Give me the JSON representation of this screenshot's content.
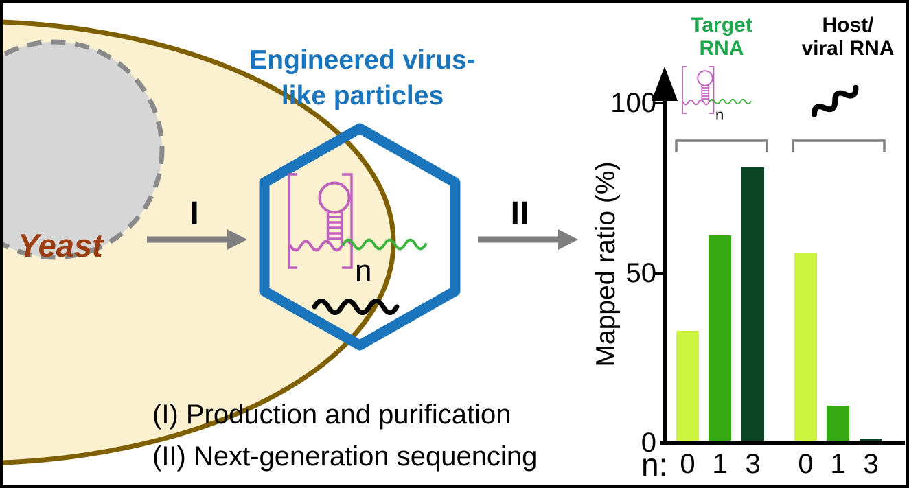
{
  "palette": {
    "vlp_blue": "#1B75BC",
    "yeast_fill": "#FBF0D0",
    "yeast_border": "#7F6000",
    "nucleus_gray": "#D6D6D6",
    "yeast_label_color": "#9A3B10",
    "rna_magenta": "#BE62BE",
    "rna_green": "#3CB53C",
    "target_label_green": "#1FA84B",
    "arrow_gray": "#7F7F7F"
  },
  "yeast": {
    "label": "Yeast"
  },
  "vlp": {
    "title_lines": [
      "Engineered virus-",
      "like particles"
    ],
    "repeat_subscript": "n"
  },
  "steps": {
    "arrow1_label": "I",
    "arrow2_label": "II",
    "note1": "(I) Production and purification",
    "note2": "(II) Next-generation sequencing"
  },
  "chart_data": {
    "type": "bar",
    "title": "",
    "ylabel": "Mapped ratio (%)",
    "ylim": [
      0,
      100
    ],
    "yticks": [
      "0",
      "50",
      "100"
    ],
    "grid": false,
    "legend_position": "top",
    "x_prefix": "n:",
    "categories": [
      "0",
      "1",
      "3"
    ],
    "bar_colors": [
      "#CDF53F",
      "#35A812",
      "#0B4422"
    ],
    "groups": [
      {
        "label": "Target RNA",
        "header_lines": [
          "Target",
          "RNA"
        ],
        "values": [
          33,
          61,
          81
        ]
      },
      {
        "label": "Host/viral RNA",
        "header_lines": [
          "Host/",
          "viral RNA"
        ],
        "values": [
          56,
          11,
          1
        ]
      }
    ]
  }
}
